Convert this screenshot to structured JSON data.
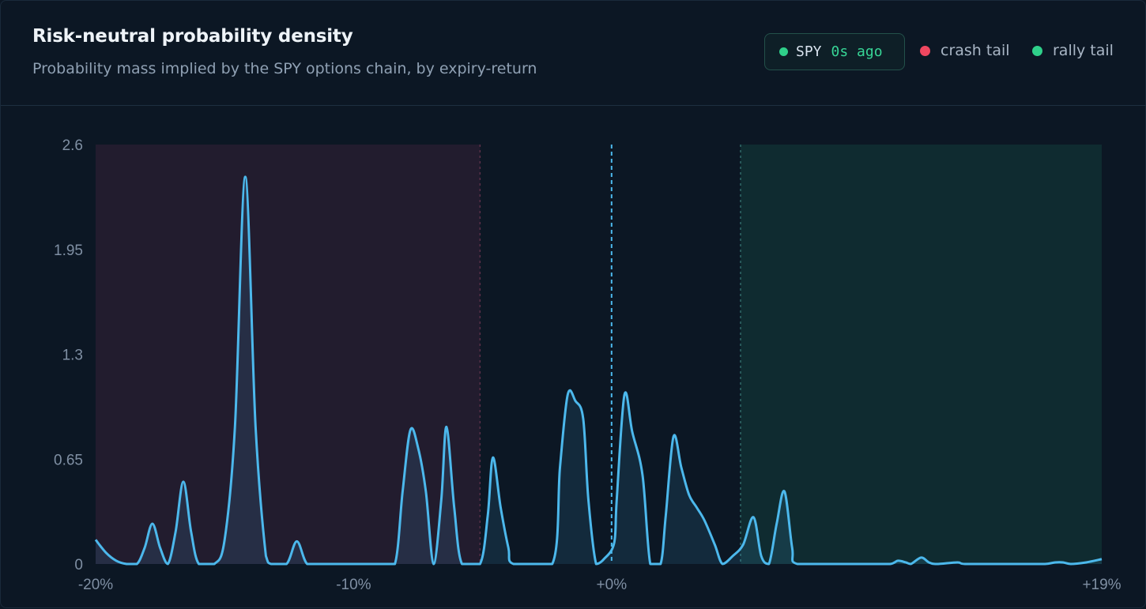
{
  "header": {
    "title": "Risk-neutral probability density",
    "subtitle": "Probability mass implied by the SPY options chain, by expiry-return"
  },
  "live": {
    "ticker": "SPY",
    "age": "0s ago",
    "status_color": "#2fd08a"
  },
  "legend": {
    "crash": {
      "label": "crash tail",
      "color": "#ef4760"
    },
    "rally": {
      "label": "rally tail",
      "color": "#2fd08a"
    }
  },
  "colors": {
    "line": "#4cb8ec",
    "crash_zone": "#221c2e",
    "rally_zone": "#0f2b30",
    "crash_boundary": "#5a3049",
    "rally_boundary": "#2f6a6a",
    "zero_marker": "#4cb8ec"
  },
  "chart_data": {
    "type": "area",
    "title": "Risk-neutral probability density",
    "xlim": [
      -20,
      19
    ],
    "ylim": [
      0,
      2.6
    ],
    "x_ticks": [
      -20,
      -10,
      0,
      19
    ],
    "x_tick_labels": [
      "-20%",
      "-10%",
      "+0%",
      "+19%"
    ],
    "y_ticks": [
      0,
      0.65,
      1.3,
      1.95,
      2.6
    ],
    "y_tick_labels": [
      "0",
      "0.65",
      "1.3",
      "1.95",
      "2.6"
    ],
    "crash_tail_max": -5.1,
    "rally_tail_min": 5.0,
    "zero_line": 0,
    "grid": false,
    "legend": "top-right",
    "series": [
      {
        "points": [
          [
            -20,
            0.15
          ],
          [
            -19.6,
            0.07
          ],
          [
            -19.2,
            0.02
          ],
          [
            -18.8,
            0
          ],
          [
            -18.4,
            0
          ],
          [
            -18.1,
            0.1
          ],
          [
            -17.8,
            0.25
          ],
          [
            -17.5,
            0.1
          ],
          [
            -17.2,
            0
          ],
          [
            -16.9,
            0.2
          ],
          [
            -16.6,
            0.51
          ],
          [
            -16.3,
            0.2
          ],
          [
            -16.0,
            0
          ],
          [
            -15.4,
            0
          ],
          [
            -15.0,
            0.15
          ],
          [
            -14.6,
            0.85
          ],
          [
            -14.2,
            2.4
          ],
          [
            -13.8,
            0.85
          ],
          [
            -13.4,
            0.05
          ],
          [
            -13.2,
            0
          ],
          [
            -12.6,
            0
          ],
          [
            -12.2,
            0.14
          ],
          [
            -11.8,
            0
          ],
          [
            -11.2,
            0
          ],
          [
            -10.0,
            0
          ],
          [
            -9.0,
            0
          ],
          [
            -8.4,
            0
          ],
          [
            -8.1,
            0.45
          ],
          [
            -7.8,
            0.83
          ],
          [
            -7.5,
            0.72
          ],
          [
            -7.2,
            0.45
          ],
          [
            -6.9,
            0
          ],
          [
            -6.6,
            0.4
          ],
          [
            -6.4,
            0.85
          ],
          [
            -6.1,
            0.35
          ],
          [
            -5.8,
            0
          ],
          [
            -5.1,
            0
          ],
          [
            -4.8,
            0.3
          ],
          [
            -4.6,
            0.66
          ],
          [
            -4.3,
            0.35
          ],
          [
            -4.0,
            0.1
          ],
          [
            -3.8,
            0
          ],
          [
            -2.3,
            0
          ],
          [
            -2.0,
            0.6
          ],
          [
            -1.7,
            1.05
          ],
          [
            -1.4,
            1.01
          ],
          [
            -1.1,
            0.9
          ],
          [
            -0.9,
            0.4
          ],
          [
            -0.6,
            0
          ],
          [
            -0.3,
            0.03
          ],
          [
            0.1,
            0.13
          ],
          [
            0.2,
            0.4
          ],
          [
            0.5,
            1.05
          ],
          [
            0.8,
            0.82
          ],
          [
            1.2,
            0.55
          ],
          [
            1.5,
            0
          ],
          [
            1.9,
            0
          ],
          [
            2.1,
            0.3
          ],
          [
            2.4,
            0.79
          ],
          [
            2.7,
            0.6
          ],
          [
            3.0,
            0.43
          ],
          [
            3.3,
            0.35
          ],
          [
            3.6,
            0.27
          ],
          [
            4.0,
            0.12
          ],
          [
            4.3,
            0
          ],
          [
            4.7,
            0.05
          ],
          [
            5.1,
            0.12
          ],
          [
            5.5,
            0.29
          ],
          [
            5.8,
            0.05
          ],
          [
            6.1,
            0
          ],
          [
            6.4,
            0.25
          ],
          [
            6.7,
            0.45
          ],
          [
            7.0,
            0.1
          ],
          [
            7.2,
            0
          ],
          [
            9.0,
            0
          ],
          [
            10.0,
            0
          ],
          [
            10.8,
            0
          ],
          [
            11.1,
            0.02
          ],
          [
            11.4,
            0.01
          ],
          [
            11.6,
            0
          ],
          [
            12.0,
            0.04
          ],
          [
            12.3,
            0.01
          ],
          [
            12.6,
            0
          ],
          [
            13.4,
            0.01
          ],
          [
            13.7,
            0
          ],
          [
            15.0,
            0
          ],
          [
            16.0,
            0
          ],
          [
            16.8,
            0
          ],
          [
            17.2,
            0.01
          ],
          [
            17.5,
            0.01
          ],
          [
            17.8,
            0
          ],
          [
            18.4,
            0.01
          ],
          [
            19,
            0.03
          ]
        ]
      }
    ]
  }
}
